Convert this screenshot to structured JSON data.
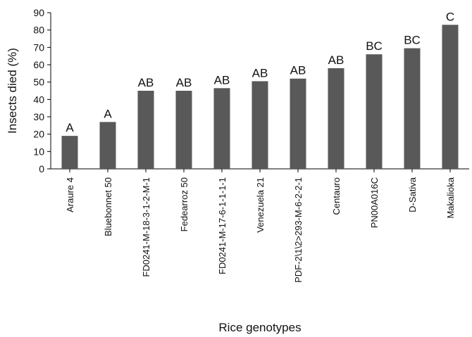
{
  "chart_data": {
    "type": "bar",
    "title": "",
    "xlabel": "Rice genotypes",
    "ylabel": "Insects died (%)",
    "ylim": [
      0,
      90
    ],
    "yticks": [
      0,
      10,
      20,
      30,
      40,
      50,
      60,
      70,
      80,
      90
    ],
    "grid": false,
    "categories": [
      "Araure 4",
      "Bluebonnet 50",
      "FD0241-M-18-3-1-2-M-1",
      "Fedearroz 50",
      "FD0241-M-17-6-1-1-1-1",
      "Venezuela 21",
      "PDF-2\\1\\2>293-M-6-2-2-1",
      "Centauro",
      "PN00A016C",
      "D-Sativa",
      "Makalioka"
    ],
    "values": [
      19,
      27,
      45,
      45,
      46.5,
      50.5,
      52,
      58,
      66,
      69.5,
      83
    ],
    "significance_labels": [
      "A",
      "A",
      "AB",
      "AB",
      "AB",
      "AB",
      "AB",
      "AB",
      "BC",
      "BC",
      "C"
    ],
    "bar_color": "#595959"
  }
}
